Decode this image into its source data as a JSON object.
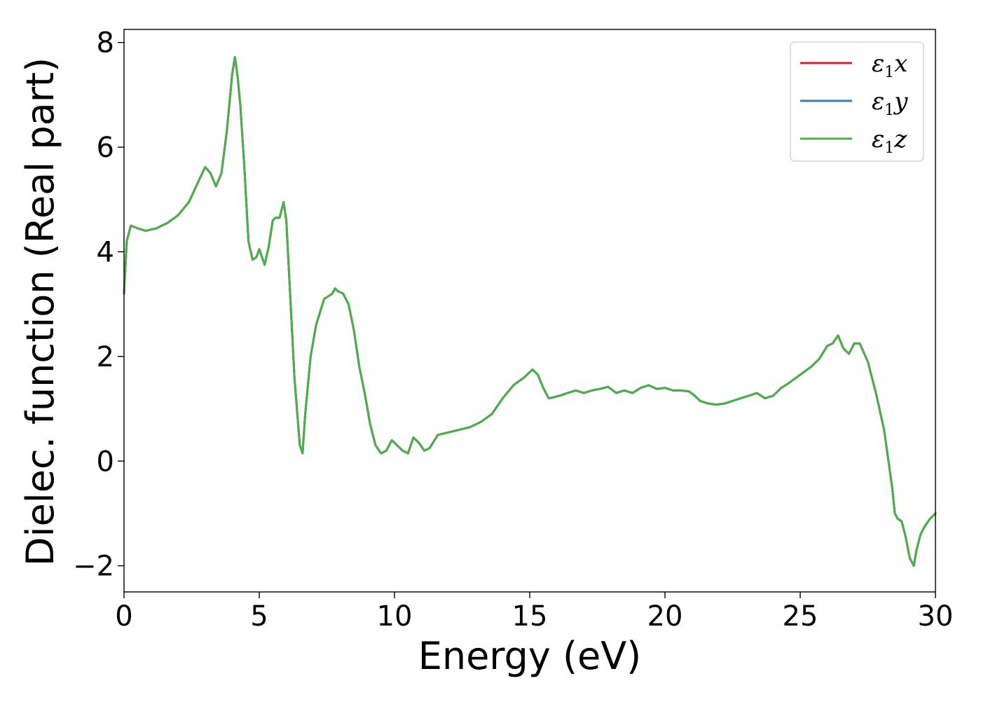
{
  "chart_data": {
    "type": "line",
    "xlabel": "Energy (eV)",
    "ylabel": "Dielec. function (Real part)",
    "xlim": [
      0,
      30
    ],
    "ylim": [
      -2.5,
      8.25
    ],
    "xticks": [
      0,
      5,
      10,
      15,
      20,
      25,
      30
    ],
    "yticks": [
      -2,
      0,
      2,
      4,
      6,
      8
    ],
    "ytick_labels": [
      "−2",
      "0",
      "2",
      "4",
      "6",
      "8"
    ],
    "grid": false,
    "legend_position": "top-right",
    "x": [
      0,
      0.1,
      0.25,
      0.5,
      0.8,
      1.2,
      1.6,
      2.0,
      2.4,
      2.8,
      3.0,
      3.2,
      3.4,
      3.6,
      3.8,
      4.0,
      4.1,
      4.2,
      4.3,
      4.45,
      4.6,
      4.75,
      4.9,
      5.0,
      5.1,
      5.2,
      5.35,
      5.5,
      5.6,
      5.75,
      5.9,
      6.0,
      6.1,
      6.3,
      6.5,
      6.6,
      6.7,
      6.9,
      7.1,
      7.4,
      7.7,
      7.8,
      7.9,
      8.1,
      8.3,
      8.5,
      8.7,
      8.9,
      9.1,
      9.3,
      9.5,
      9.7,
      9.9,
      10.1,
      10.3,
      10.5,
      10.7,
      10.9,
      11.1,
      11.3,
      11.6,
      12.0,
      12.4,
      12.8,
      13.2,
      13.6,
      14.0,
      14.4,
      14.8,
      15.0,
      15.1,
      15.3,
      15.5,
      15.7,
      15.9,
      16.1,
      16.4,
      16.7,
      17.0,
      17.3,
      17.6,
      17.9,
      18.2,
      18.5,
      18.8,
      19.1,
      19.4,
      19.7,
      20.0,
      20.3,
      20.6,
      20.9,
      21.1,
      21.3,
      21.6,
      21.9,
      22.2,
      22.5,
      22.8,
      23.1,
      23.4,
      23.7,
      24.0,
      24.3,
      24.6,
      25.0,
      25.4,
      25.7,
      26.0,
      26.2,
      26.4,
      26.6,
      26.8,
      27.0,
      27.2,
      27.5,
      27.8,
      28.1,
      28.4,
      28.5,
      28.6,
      28.75,
      28.9,
      29.05,
      29.2,
      29.3,
      29.45,
      29.6,
      29.8,
      30.0
    ],
    "series": [
      {
        "name": "x",
        "color": "#e41a1c",
        "values": [
          3.2,
          4.2,
          4.5,
          4.45,
          4.4,
          4.45,
          4.55,
          4.7,
          4.95,
          5.4,
          5.62,
          5.5,
          5.25,
          5.5,
          6.3,
          7.4,
          7.72,
          7.35,
          6.8,
          5.6,
          4.2,
          3.85,
          3.9,
          4.05,
          3.9,
          3.75,
          4.1,
          4.6,
          4.65,
          4.65,
          4.95,
          4.6,
          3.6,
          1.6,
          0.3,
          0.15,
          0.9,
          2.0,
          2.6,
          3.1,
          3.2,
          3.3,
          3.25,
          3.2,
          3.0,
          2.5,
          1.8,
          1.3,
          0.7,
          0.3,
          0.15,
          0.2,
          0.4,
          0.3,
          0.2,
          0.15,
          0.45,
          0.35,
          0.2,
          0.25,
          0.5,
          0.55,
          0.6,
          0.65,
          0.75,
          0.9,
          1.2,
          1.45,
          1.6,
          1.7,
          1.75,
          1.65,
          1.4,
          1.2,
          1.22,
          1.25,
          1.3,
          1.35,
          1.3,
          1.35,
          1.38,
          1.42,
          1.3,
          1.35,
          1.3,
          1.4,
          1.45,
          1.38,
          1.4,
          1.35,
          1.35,
          1.33,
          1.25,
          1.15,
          1.1,
          1.08,
          1.1,
          1.15,
          1.2,
          1.25,
          1.3,
          1.2,
          1.25,
          1.4,
          1.5,
          1.65,
          1.8,
          1.95,
          2.2,
          2.25,
          2.4,
          2.15,
          2.05,
          2.25,
          2.25,
          1.9,
          1.3,
          0.6,
          -0.5,
          -1.0,
          -1.1,
          -1.15,
          -1.45,
          -1.85,
          -2.0,
          -1.7,
          -1.4,
          -1.25,
          -1.1,
          -1.0
        ]
      },
      {
        "name": "y",
        "color": "#377eb8",
        "values": [
          3.2,
          4.2,
          4.5,
          4.45,
          4.4,
          4.45,
          4.55,
          4.7,
          4.95,
          5.4,
          5.62,
          5.5,
          5.25,
          5.5,
          6.3,
          7.4,
          7.72,
          7.35,
          6.8,
          5.6,
          4.2,
          3.85,
          3.9,
          4.05,
          3.9,
          3.75,
          4.1,
          4.6,
          4.65,
          4.65,
          4.95,
          4.6,
          3.6,
          1.6,
          0.3,
          0.15,
          0.9,
          2.0,
          2.6,
          3.1,
          3.2,
          3.3,
          3.25,
          3.2,
          3.0,
          2.5,
          1.8,
          1.3,
          0.7,
          0.3,
          0.15,
          0.2,
          0.4,
          0.3,
          0.2,
          0.15,
          0.45,
          0.35,
          0.2,
          0.25,
          0.5,
          0.55,
          0.6,
          0.65,
          0.75,
          0.9,
          1.2,
          1.45,
          1.6,
          1.7,
          1.75,
          1.65,
          1.4,
          1.2,
          1.22,
          1.25,
          1.3,
          1.35,
          1.3,
          1.35,
          1.38,
          1.42,
          1.3,
          1.35,
          1.3,
          1.4,
          1.45,
          1.38,
          1.4,
          1.35,
          1.35,
          1.33,
          1.25,
          1.15,
          1.1,
          1.08,
          1.1,
          1.15,
          1.2,
          1.25,
          1.3,
          1.2,
          1.25,
          1.4,
          1.5,
          1.65,
          1.8,
          1.95,
          2.2,
          2.25,
          2.4,
          2.15,
          2.05,
          2.25,
          2.25,
          1.9,
          1.3,
          0.6,
          -0.5,
          -1.0,
          -1.1,
          -1.15,
          -1.45,
          -1.85,
          -2.0,
          -1.7,
          -1.4,
          -1.25,
          -1.1,
          -1.0
        ]
      },
      {
        "name": "z",
        "color": "#4daf4a",
        "values": [
          3.2,
          4.2,
          4.5,
          4.45,
          4.4,
          4.45,
          4.55,
          4.7,
          4.95,
          5.4,
          5.62,
          5.5,
          5.25,
          5.5,
          6.3,
          7.4,
          7.72,
          7.35,
          6.8,
          5.6,
          4.2,
          3.85,
          3.9,
          4.05,
          3.9,
          3.75,
          4.1,
          4.6,
          4.65,
          4.65,
          4.95,
          4.6,
          3.6,
          1.6,
          0.3,
          0.15,
          0.9,
          2.0,
          2.6,
          3.1,
          3.2,
          3.3,
          3.25,
          3.2,
          3.0,
          2.5,
          1.8,
          1.3,
          0.7,
          0.3,
          0.15,
          0.2,
          0.4,
          0.3,
          0.2,
          0.15,
          0.45,
          0.35,
          0.2,
          0.25,
          0.5,
          0.55,
          0.6,
          0.65,
          0.75,
          0.9,
          1.2,
          1.45,
          1.6,
          1.7,
          1.75,
          1.65,
          1.4,
          1.2,
          1.22,
          1.25,
          1.3,
          1.35,
          1.3,
          1.35,
          1.38,
          1.42,
          1.3,
          1.35,
          1.3,
          1.4,
          1.45,
          1.38,
          1.4,
          1.35,
          1.35,
          1.33,
          1.25,
          1.15,
          1.1,
          1.08,
          1.1,
          1.15,
          1.2,
          1.25,
          1.3,
          1.2,
          1.25,
          1.4,
          1.5,
          1.65,
          1.8,
          1.95,
          2.2,
          2.25,
          2.4,
          2.15,
          2.05,
          2.25,
          2.25,
          1.9,
          1.3,
          0.6,
          -0.5,
          -1.0,
          -1.1,
          -1.15,
          -1.45,
          -1.85,
          -2.0,
          -1.7,
          -1.4,
          -1.25,
          -1.1,
          -1.0
        ]
      }
    ],
    "legend": [
      {
        "symbol": "ε",
        "subscript": "1",
        "component": "x",
        "color": "#e41a1c"
      },
      {
        "symbol": "ε",
        "subscript": "1",
        "component": "y",
        "color": "#377eb8"
      },
      {
        "symbol": "ε",
        "subscript": "1",
        "component": "z",
        "color": "#4daf4a"
      }
    ]
  }
}
